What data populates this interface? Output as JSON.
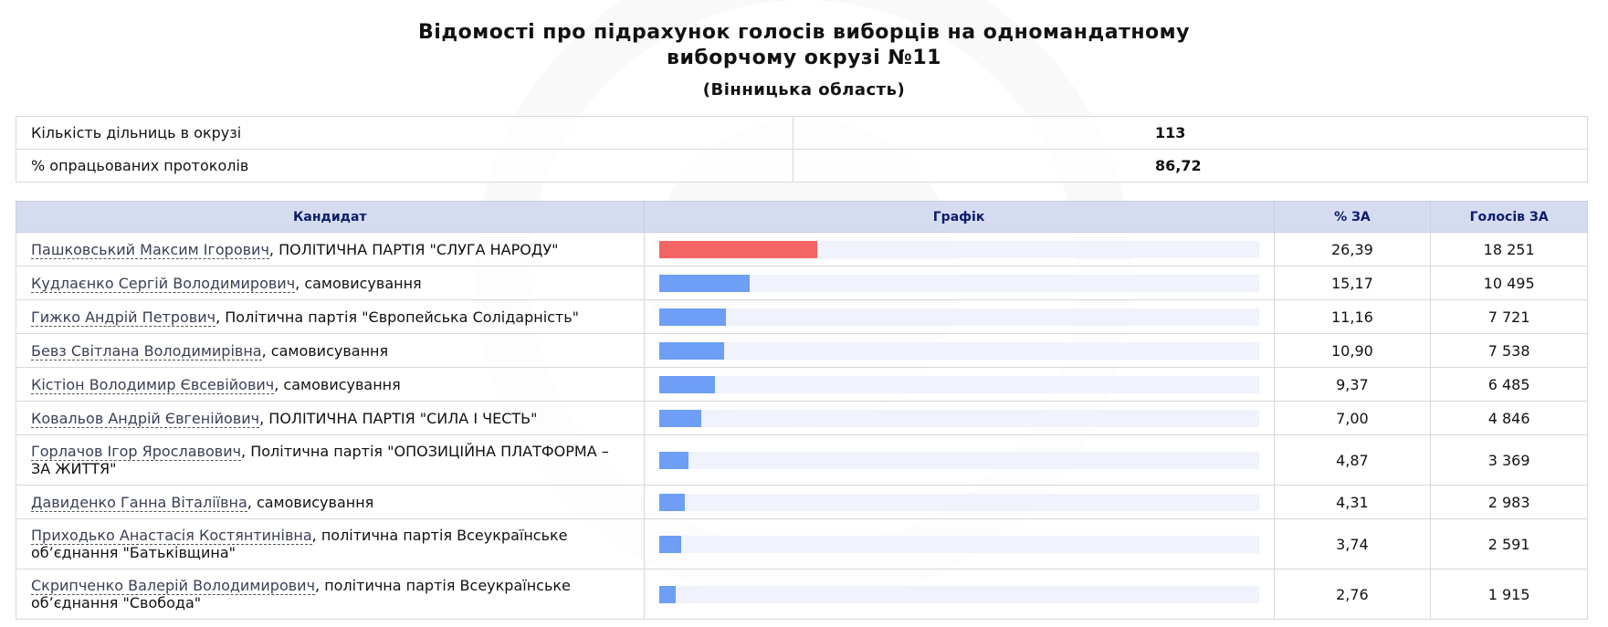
{
  "header": {
    "title_line1": "Відомості про підрахунок голосів виборців на одномандатному",
    "title_line2": "виборчому окрузі №11",
    "region": "(Вінницька область)"
  },
  "summary": [
    {
      "label": "Кількість дільниць в окрузі",
      "value": "113"
    },
    {
      "label": "% опрацьованих протоколів",
      "value": "86,72"
    }
  ],
  "table": {
    "headers": {
      "candidate": "Кандидат",
      "graph": "Графік",
      "pct": "% ЗА",
      "votes": "Голосів ЗА"
    },
    "colors": {
      "leader_bar": "#f46464",
      "bar": "#6e9ef5",
      "track": "#f0f2fc",
      "header_bg": "#d6dcf0"
    },
    "max_percent": 100,
    "rows": [
      {
        "name": "Пашковський Максим Ігорович",
        "party": ", ПОЛІТИЧНА ПАРТІЯ \"СЛУГА НАРОДУ\"",
        "pct": "26,39",
        "pct_value": 26.39,
        "votes": "18 251",
        "leader": true
      },
      {
        "name": "Кудлаєнко Сергій Володимирович",
        "party": ", самовисування",
        "pct": "15,17",
        "pct_value": 15.17,
        "votes": "10 495"
      },
      {
        "name": "Гижко Андрій Петрович",
        "party": ", Політична партія \"Європейська Солідарність\"",
        "pct": "11,16",
        "pct_value": 11.16,
        "votes": "7 721"
      },
      {
        "name": "Бевз Світлана Володимирівна",
        "party": ", самовисування",
        "pct": "10,90",
        "pct_value": 10.9,
        "votes": "7 538"
      },
      {
        "name": "Кістіон Володимир Євсевійович",
        "party": ", самовисування",
        "pct": "9,37",
        "pct_value": 9.37,
        "votes": "6 485"
      },
      {
        "name": "Ковальов Андрій Євгенійович",
        "party": ", ПОЛІТИЧНА ПАРТІЯ \"СИЛА І ЧЕСТЬ\"",
        "pct": "7,00",
        "pct_value": 7.0,
        "votes": "4 846"
      },
      {
        "name": "Горлачов Ігор Ярославович",
        "party": ", Політична партія \"ОПОЗИЦІЙНА ПЛАТФОРМА – ЗА ЖИТТЯ\"",
        "pct": "4,87",
        "pct_value": 4.87,
        "votes": "3 369"
      },
      {
        "name": "Давиденко Ганна Віталіївна",
        "party": ", самовисування",
        "pct": "4,31",
        "pct_value": 4.31,
        "votes": "2 983"
      },
      {
        "name": "Приходько Анастасія Костянтинівна",
        "party": ", політична партія Всеукраїнське об’єднання \"Батьківщина\"",
        "pct": "3,74",
        "pct_value": 3.74,
        "votes": "2 591"
      },
      {
        "name": "Скрипченко Валерій Володимирович",
        "party": ", політична партія Всеукраїнське об’єднання \"Свобода\"",
        "pct": "2,76",
        "pct_value": 2.76,
        "votes": "1 915"
      }
    ]
  }
}
